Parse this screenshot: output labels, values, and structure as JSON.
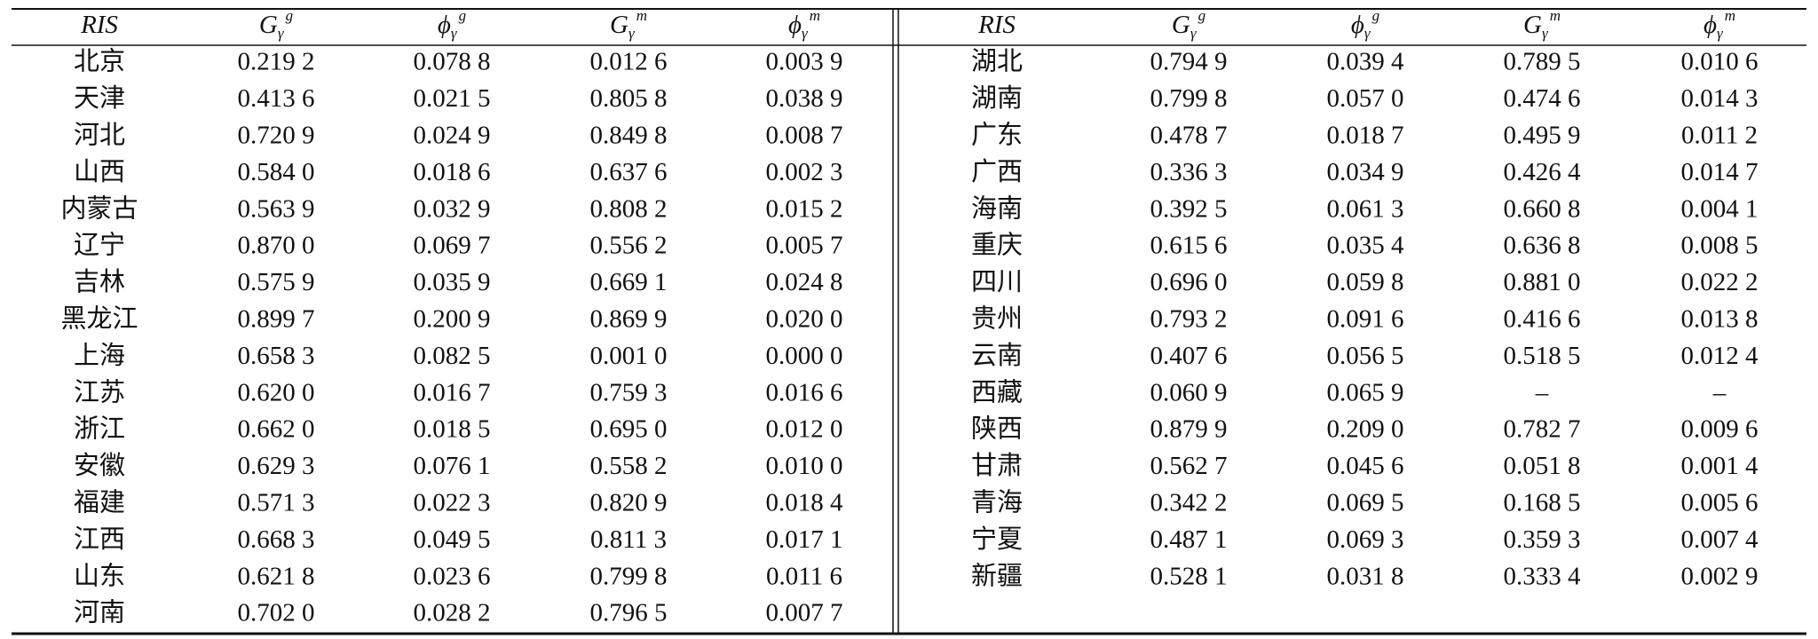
{
  "table": {
    "header": [
      {
        "base": "RIS"
      },
      {
        "base": "G",
        "sub": "γ",
        "sup": "g"
      },
      {
        "base": "ϕ",
        "sub": "γ",
        "sup": "g"
      },
      {
        "base": "G",
        "sub": "γ",
        "sup": "m"
      },
      {
        "base": "ϕ",
        "sub": "γ",
        "sup": "m"
      }
    ],
    "left_rows": [
      [
        "北京",
        "0.219 2",
        "0.078 8",
        "0.012 6",
        "0.003 9"
      ],
      [
        "天津",
        "0.413 6",
        "0.021 5",
        "0.805 8",
        "0.038 9"
      ],
      [
        "河北",
        "0.720 9",
        "0.024 9",
        "0.849 8",
        "0.008 7"
      ],
      [
        "山西",
        "0.584 0",
        "0.018 6",
        "0.637 6",
        "0.002 3"
      ],
      [
        "内蒙古",
        "0.563 9",
        "0.032 9",
        "0.808 2",
        "0.015 2"
      ],
      [
        "辽宁",
        "0.870 0",
        "0.069 7",
        "0.556 2",
        "0.005 7"
      ],
      [
        "吉林",
        "0.575 9",
        "0.035 9",
        "0.669 1",
        "0.024 8"
      ],
      [
        "黑龙江",
        "0.899 7",
        "0.200 9",
        "0.869 9",
        "0.020 0"
      ],
      [
        "上海",
        "0.658 3",
        "0.082 5",
        "0.001 0",
        "0.000 0"
      ],
      [
        "江苏",
        "0.620 0",
        "0.016 7",
        "0.759 3",
        "0.016 6"
      ],
      [
        "浙江",
        "0.662 0",
        "0.018 5",
        "0.695 0",
        "0.012 0"
      ],
      [
        "安徽",
        "0.629 3",
        "0.076 1",
        "0.558 2",
        "0.010 0"
      ],
      [
        "福建",
        "0.571 3",
        "0.022 3",
        "0.820 9",
        "0.018 4"
      ],
      [
        "江西",
        "0.668 3",
        "0.049 5",
        "0.811 3",
        "0.017 1"
      ],
      [
        "山东",
        "0.621 8",
        "0.023 6",
        "0.799 8",
        "0.011 6"
      ],
      [
        "河南",
        "0.702 0",
        "0.028 2",
        "0.796 5",
        "0.007 7"
      ]
    ],
    "right_rows": [
      [
        "湖北",
        "0.794 9",
        "0.039 4",
        "0.789 5",
        "0.010 6"
      ],
      [
        "湖南",
        "0.799 8",
        "0.057 0",
        "0.474 6",
        "0.014 3"
      ],
      [
        "广东",
        "0.478 7",
        "0.018 7",
        "0.495 9",
        "0.011 2"
      ],
      [
        "广西",
        "0.336 3",
        "0.034 9",
        "0.426 4",
        "0.014 7"
      ],
      [
        "海南",
        "0.392 5",
        "0.061 3",
        "0.660 8",
        "0.004 1"
      ],
      [
        "重庆",
        "0.615 6",
        "0.035 4",
        "0.636 8",
        "0.008 5"
      ],
      [
        "四川",
        "0.696 0",
        "0.059 8",
        "0.881 0",
        "0.022 2"
      ],
      [
        "贵州",
        "0.793 2",
        "0.091 6",
        "0.416 6",
        "0.013 8"
      ],
      [
        "云南",
        "0.407 6",
        "0.056 5",
        "0.518 5",
        "0.012 4"
      ],
      [
        "西藏",
        "0.060 9",
        "0.065 9",
        "–",
        "–"
      ],
      [
        "陕西",
        "0.879 9",
        "0.209 0",
        "0.782 7",
        "0.009 6"
      ],
      [
        "甘肃",
        "0.562 7",
        "0.045 6",
        "0.051 8",
        "0.001 4"
      ],
      [
        "青海",
        "0.342 2",
        "0.069 5",
        "0.168 5",
        "0.005 6"
      ],
      [
        "宁夏",
        "0.487 1",
        "0.069 3",
        "0.359 3",
        "0.007 4"
      ],
      [
        "新疆",
        "0.528 1",
        "0.031 8",
        "0.333 4",
        "0.002 9"
      ]
    ]
  }
}
